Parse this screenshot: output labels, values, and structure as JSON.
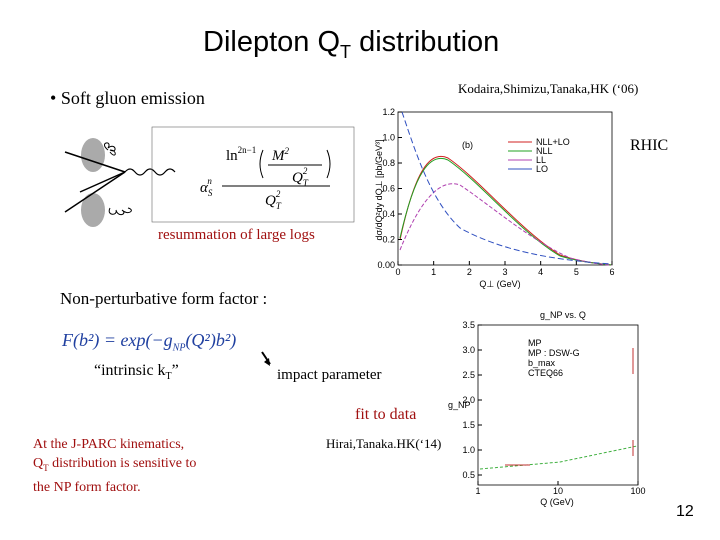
{
  "slide": {
    "title": {
      "main": "Dilepton Q",
      "sub": "T",
      "rest": " distribution"
    },
    "bullet": "Soft gluon emission",
    "citation_top": "Kodaira,Shimizu,Tanaka,HK (‘06)",
    "formula_top": {
      "ln": "ln",
      "power": "2n−1",
      "num_m": "M",
      "num_sq": "2",
      "den_q": "Q",
      "den_t": "T",
      "den_sq": "2",
      "bottom_q": "Q",
      "bottom_t": "T",
      "bottom_sq": "2",
      "alpha": "α",
      "alpha_sub": "S",
      "alpha_sup": "n"
    },
    "resummation": "resummation of large logs",
    "rhic": "RHIC",
    "np_heading": "Non-perturbative form factor :",
    "formula_np": {
      "lhs": "F(b²) = exp(−g",
      "sub": "NP",
      "rhs": "(Q²)b²)"
    },
    "intrinsic": {
      "a": "“intrinsic k",
      "sub": "T",
      "b": "”"
    },
    "impact": "impact parameter",
    "fit": "fit to data",
    "citation_bottom": "Hirai,Tanaka.HK(‘14)",
    "conclusion": {
      "line1": "At the J-PARC kinematics,",
      "q": "Q",
      "t": "T",
      "line2": " distribution is sensitive to",
      "line3": "the NP form factor."
    },
    "page_number": "12"
  },
  "plot_top": {
    "panel": "(b)",
    "xlabel": "Q⊥ (GeV)",
    "ylabel": "dσ/dQ²dy dQ⊥ [pb/GeV³]",
    "xlim": [
      0,
      6
    ],
    "ylim": [
      0,
      1.2
    ],
    "xticks": [
      0,
      1,
      2,
      3,
      4,
      5,
      6
    ],
    "yticks": [
      {
        "value": 0,
        "label": "0.00"
      },
      0.2,
      0.4,
      0.6,
      0.8,
      {
        "value": 1,
        "label": "1.0"
      },
      1.2
    ],
    "legend": [
      {
        "name": "NLL+LO",
        "color": "#d02020"
      },
      {
        "name": "NLL",
        "color": "#20a020"
      },
      {
        "name": "LL",
        "color": "#b040b0"
      },
      {
        "name": "LO",
        "color": "#3050c0"
      }
    ]
  },
  "plot_bottom": {
    "title": "g_NP vs. Q",
    "xlabel": "Q (GeV)",
    "ylabel": "g_NP",
    "xlim": [
      1,
      100
    ],
    "ylim": [
      0.5,
      3.5
    ],
    "xticks": [
      1,
      10,
      100
    ],
    "yticks": [
      3.5,
      {
        "value": 3,
        "label": "3.0"
      },
      2.5,
      {
        "value": 2,
        "label": "2.0"
      },
      1.5,
      {
        "value": 1,
        "label": "1.0"
      },
      0.5
    ],
    "legend": [
      "MP",
      "MP : DSW-G",
      "b_max",
      "CTEQ66"
    ]
  }
}
